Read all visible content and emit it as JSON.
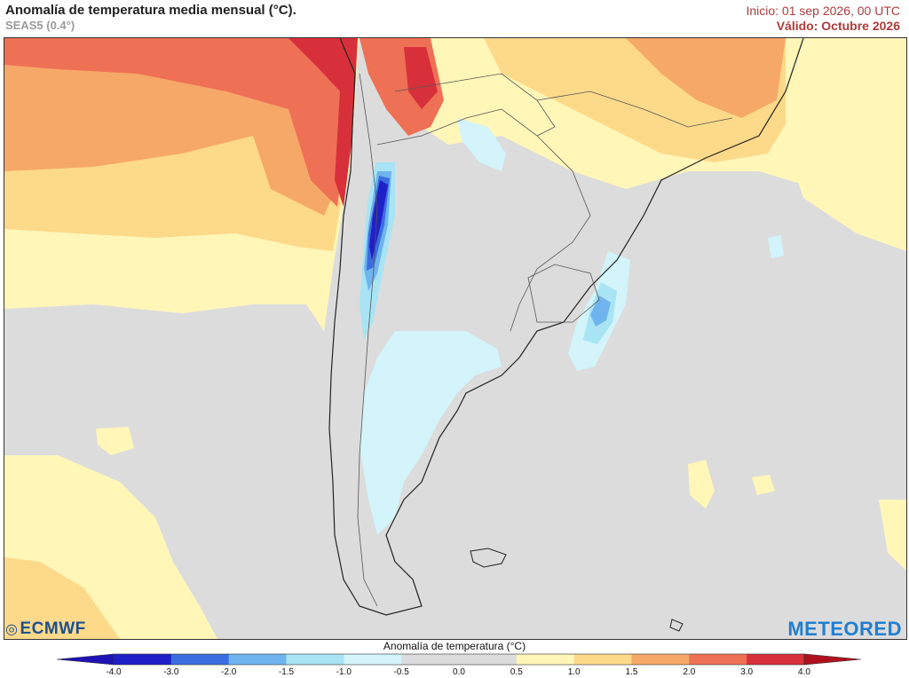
{
  "header": {
    "title": "Anomalía de temperatura media mensual (°C).",
    "model": "SEAS5 (0.4°)",
    "start": "Inicio: 01 sep 2026, 00 UTC",
    "valid": "Válido: Octubre 2026"
  },
  "logos": {
    "left": "ECMWF",
    "right": "METEORED"
  },
  "legend": {
    "title": "Anomalía de temperatura (°C)",
    "ticks": [
      "-4.0",
      "-3.0",
      "-2.0",
      "-1.5",
      "-1.0",
      "-0.5",
      "0.0",
      "0.5",
      "1.0",
      "1.5",
      "2.0",
      "3.0",
      "4.0"
    ],
    "colors": [
      "#2020c8",
      "#3a6ee0",
      "#6fb4ee",
      "#a8e4f4",
      "#d2f4fa",
      "#dcdcdc",
      "#dcdcdc",
      "#fff6b8",
      "#fdd98a",
      "#f6a868",
      "#ee7055",
      "#d8303a"
    ],
    "under_color": "#1e12b4",
    "over_color": "#b0101e"
  },
  "map": {
    "region": "South America (southern cone) with adjacent Pacific and Atlantic oceans",
    "background_color": "#dcdcdc"
  }
}
